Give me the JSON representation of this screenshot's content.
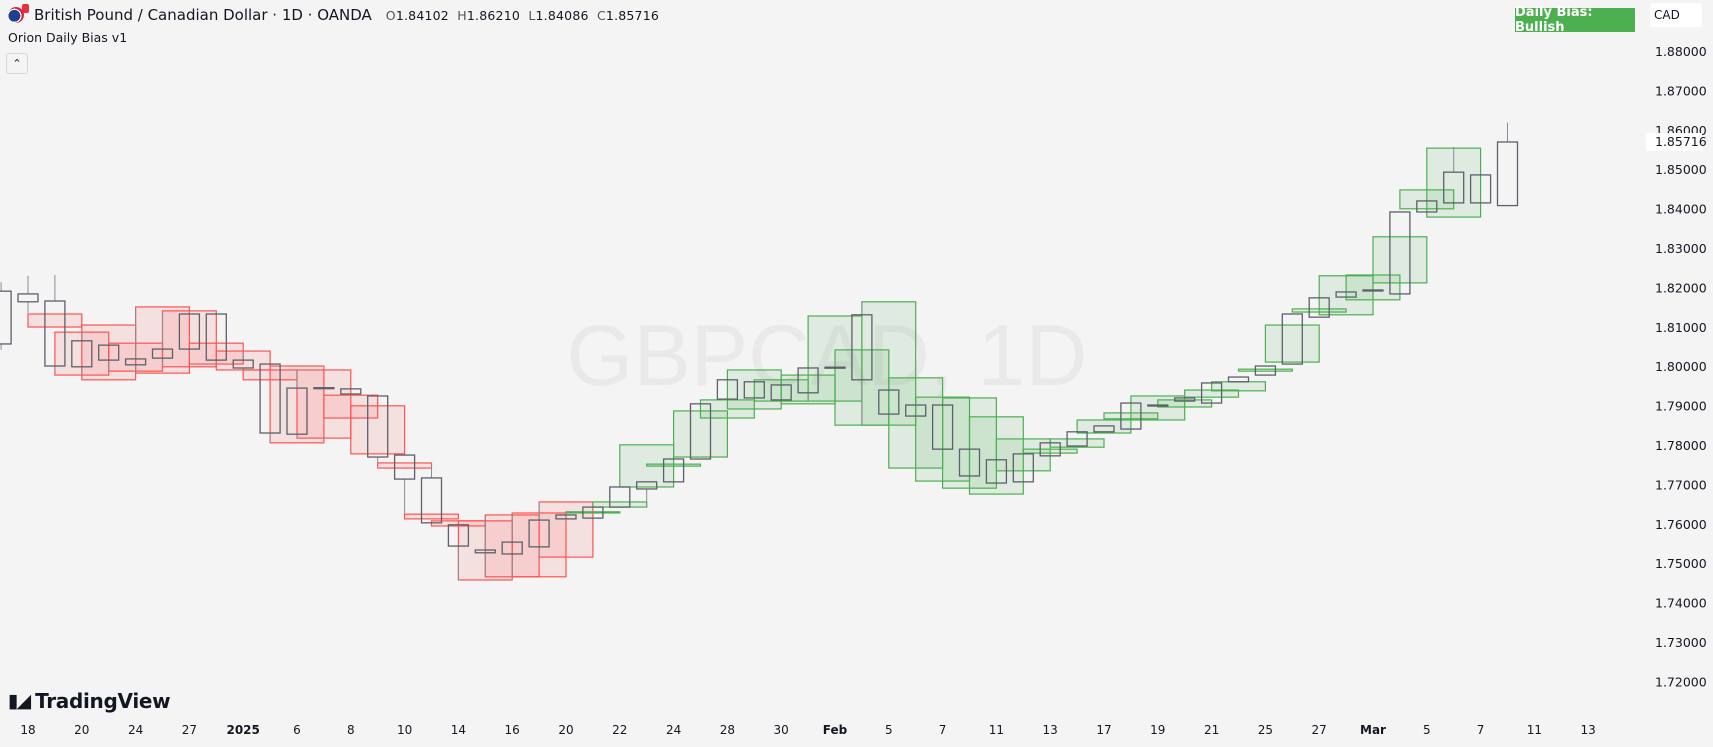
{
  "header": {
    "symbol_title": "British Pound / Canadian Dollar · 1D · OANDA",
    "ohlc": {
      "o_label": "O",
      "o": "1.84102",
      "h_label": "H",
      "h": "1.86210",
      "l_label": "L",
      "l": "1.84086",
      "c_label": "C",
      "c": "1.85716"
    },
    "indicator_name": "Orion Daily Bias v1",
    "collapse_icon": "chevron-up-icon"
  },
  "bias_badge": {
    "text": "Daily Bias: Bullish",
    "color": "#4caf50"
  },
  "currency_button": "CAD",
  "watermark": "GBPCAD, 1D",
  "logo": {
    "mark": "17",
    "text": "TradingView"
  },
  "colors": {
    "background": "#f4f4f4",
    "candle_outline": "#5d606b",
    "wick": "#8a8d96",
    "bearish_box": "#ff5252",
    "bullish_box": "#4caf50"
  },
  "chart_data": {
    "type": "candlestick",
    "price_axis": {
      "ticks": [
        "1.88000",
        "1.87000",
        "1.86000",
        "1.85000",
        "1.84000",
        "1.83000",
        "1.82000",
        "1.81000",
        "1.80000",
        "1.79000",
        "1.78000",
        "1.77000",
        "1.76000",
        "1.75000",
        "1.74000",
        "1.73000",
        "1.72000"
      ],
      "last_price": "1.85716"
    },
    "time_axis": [
      {
        "label": "18"
      },
      {
        "label": "20"
      },
      {
        "label": "24"
      },
      {
        "label": "27"
      },
      {
        "label": "2025",
        "bold": true
      },
      {
        "label": "6"
      },
      {
        "label": "8"
      },
      {
        "label": "10"
      },
      {
        "label": "14"
      },
      {
        "label": "16"
      },
      {
        "label": "20"
      },
      {
        "label": "22"
      },
      {
        "label": "24"
      },
      {
        "label": "28"
      },
      {
        "label": "30"
      },
      {
        "label": "Feb",
        "bold": true
      },
      {
        "label": "5"
      },
      {
        "label": "7"
      },
      {
        "label": "11"
      },
      {
        "label": "13"
      },
      {
        "label": "17"
      },
      {
        "label": "19"
      },
      {
        "label": "21"
      },
      {
        "label": "25"
      },
      {
        "label": "27"
      },
      {
        "label": "Mar",
        "bold": true
      },
      {
        "label": "5"
      },
      {
        "label": "7"
      },
      {
        "label": "11"
      },
      {
        "label": "13"
      }
    ],
    "candles": [
      [
        1.8193,
        1.8216,
        1.8044,
        1.8059
      ],
      [
        1.8186,
        1.8232,
        1.8138,
        1.8166
      ],
      [
        1.8168,
        1.8234,
        1.7993,
        1.8003
      ],
      [
        1.8001,
        1.8089,
        1.798,
        1.8067
      ],
      [
        1.8056,
        1.8061,
        1.799,
        1.8018
      ],
      [
        1.8021,
        1.8153,
        1.7985,
        1.8006
      ],
      [
        1.8023,
        1.8143,
        1.8001,
        1.8046
      ],
      [
        1.8046,
        1.8143,
        1.8039,
        1.8135
      ],
      [
        1.8135,
        1.8143,
        1.8003,
        1.8018
      ],
      [
        1.8018,
        1.8041,
        1.7993,
        1.7998
      ],
      [
        1.8008,
        1.8008,
        1.7808,
        1.7833
      ],
      [
        1.783,
        1.7993,
        1.782,
        1.7947
      ],
      [
        1.7948,
        1.7952,
        1.7942,
        1.7947
      ],
      [
        1.7945,
        1.795,
        1.7925,
        1.7932
      ],
      [
        1.7927,
        1.7927,
        1.7757,
        1.7772
      ],
      [
        1.7777,
        1.7777,
        1.7627,
        1.7716
      ],
      [
        1.7719,
        1.7757,
        1.7605,
        1.7605
      ],
      [
        1.76,
        1.761,
        1.746,
        1.7546
      ],
      [
        1.7529,
        1.7625,
        1.7468,
        1.7536
      ],
      [
        1.7526,
        1.763,
        1.7468,
        1.7556
      ],
      [
        1.7544,
        1.7658,
        1.7518,
        1.7612
      ],
      [
        1.7615,
        1.763,
        1.7612,
        1.7625
      ],
      [
        1.7617,
        1.7645,
        1.7617,
        1.7645
      ],
      [
        1.7645,
        1.7696,
        1.7645,
        1.7696
      ],
      [
        1.7691,
        1.7709,
        1.7645,
        1.7709
      ],
      [
        1.7709,
        1.7767,
        1.7709,
        1.7767
      ],
      [
        1.7767,
        1.7907,
        1.7767,
        1.7907
      ],
      [
        1.7919,
        1.7968,
        1.7919,
        1.7968
      ],
      [
        1.7963,
        1.7963,
        1.7922,
        1.7922
      ],
      [
        1.7917,
        1.7955,
        1.7917,
        1.7955
      ],
      [
        1.7935,
        1.7998,
        1.7914,
        1.7998
      ],
      [
        1.7998,
        1.8,
        1.7998,
        1.8
      ],
      [
        1.7968,
        1.8166,
        1.7853,
        1.8133
      ],
      [
        1.7942,
        1.7942,
        1.7881,
        1.7881
      ],
      [
        1.7904,
        1.7904,
        1.7876,
        1.7876
      ],
      [
        1.7904,
        1.7904,
        1.7792,
        1.7792
      ],
      [
        1.7792,
        1.7792,
        1.7724,
        1.7724
      ],
      [
        1.7765,
        1.7765,
        1.7706,
        1.7706
      ],
      [
        1.7709,
        1.778,
        1.7709,
        1.778
      ],
      [
        1.7775,
        1.7808,
        1.7775,
        1.7808
      ],
      [
        1.78,
        1.7836,
        1.78,
        1.7836
      ],
      [
        1.7836,
        1.7851,
        1.7836,
        1.7851
      ],
      [
        1.7843,
        1.7909,
        1.7843,
        1.7909
      ],
      [
        1.7902,
        1.7904,
        1.7902,
        1.7904
      ],
      [
        1.7914,
        1.7922,
        1.7914,
        1.7922
      ],
      [
        1.7909,
        1.796,
        1.7909,
        1.796
      ],
      [
        1.7963,
        1.7975,
        1.7963,
        1.7975
      ],
      [
        1.798,
        1.8003,
        1.798,
        1.8003
      ],
      [
        1.8008,
        1.8135,
        1.8008,
        1.8135
      ],
      [
        1.8127,
        1.8176,
        1.8127,
        1.8176
      ],
      [
        1.8178,
        1.8191,
        1.8178,
        1.8191
      ],
      [
        1.8194,
        1.8196,
        1.8194,
        1.8196
      ],
      [
        1.8186,
        1.8394,
        1.8186,
        1.8394
      ],
      [
        1.8394,
        1.8422,
        1.8394,
        1.8422
      ],
      [
        1.8417,
        1.8559,
        1.8417,
        1.8495
      ],
      [
        1.8488,
        1.8488,
        1.8417,
        1.8417
      ],
      [
        1.84102,
        1.8621,
        1.84086,
        1.85716
      ]
    ],
    "candle_fields": [
      "open",
      "high",
      "low",
      "close"
    ],
    "bias_boxes": [
      {
        "bar": 1,
        "top": 1.8135,
        "bottom": 1.8102,
        "bias": "bearish"
      },
      {
        "bar": 2,
        "top": 1.8089,
        "bottom": 1.798,
        "bias": "bearish"
      },
      {
        "bar": 3,
        "top": 1.8107,
        "bottom": 1.7968,
        "bias": "bearish"
      },
      {
        "bar": 4,
        "top": 1.8061,
        "bottom": 1.799,
        "bias": "bearish"
      },
      {
        "bar": 5,
        "top": 1.8153,
        "bottom": 1.7985,
        "bias": "bearish"
      },
      {
        "bar": 6,
        "top": 1.8143,
        "bottom": 1.8001,
        "bias": "bearish"
      },
      {
        "bar": 7,
        "top": 1.8061,
        "bottom": 1.8008,
        "bias": "bearish"
      },
      {
        "bar": 8,
        "top": 1.8041,
        "bottom": 1.7993,
        "bias": "bearish"
      },
      {
        "bar": 9,
        "top": 1.7993,
        "bottom": 1.7968,
        "bias": "bearish"
      },
      {
        "bar": 10,
        "top": 1.8003,
        "bottom": 1.7808,
        "bias": "bearish"
      },
      {
        "bar": 11,
        "top": 1.7993,
        "bottom": 1.782,
        "bias": "bearish"
      },
      {
        "bar": 12,
        "top": 1.7929,
        "bottom": 1.7871,
        "bias": "bearish"
      },
      {
        "bar": 13,
        "top": 1.7902,
        "bottom": 1.778,
        "bias": "bearish"
      },
      {
        "bar": 14,
        "top": 1.7757,
        "bottom": 1.7744,
        "bias": "bearish"
      },
      {
        "bar": 15,
        "top": 1.7627,
        "bottom": 1.7615,
        "bias": "bearish"
      },
      {
        "bar": 16,
        "top": 1.761,
        "bottom": 1.7597,
        "bias": "bearish"
      },
      {
        "bar": 17,
        "top": 1.761,
        "bottom": 1.746,
        "bias": "bearish"
      },
      {
        "bar": 18,
        "top": 1.7625,
        "bottom": 1.7468,
        "bias": "bearish"
      },
      {
        "bar": 19,
        "top": 1.763,
        "bottom": 1.7468,
        "bias": "bearish"
      },
      {
        "bar": 20,
        "top": 1.7658,
        "bottom": 1.7518,
        "bias": "bearish"
      },
      {
        "bar": 21,
        "top": 1.7633,
        "bottom": 1.763,
        "bias": "bullish"
      },
      {
        "bar": 22,
        "top": 1.7658,
        "bottom": 1.7645,
        "bias": "bullish"
      },
      {
        "bar": 23,
        "top": 1.7803,
        "bottom": 1.7696,
        "bias": "bullish"
      },
      {
        "bar": 24,
        "top": 1.7754,
        "bottom": 1.7749,
        "bias": "bullish"
      },
      {
        "bar": 25,
        "top": 1.7889,
        "bottom": 1.7772,
        "bias": "bullish"
      },
      {
        "bar": 26,
        "top": 1.7917,
        "bottom": 1.7871,
        "bias": "bullish"
      },
      {
        "bar": 27,
        "top": 1.7993,
        "bottom": 1.7894,
        "bias": "bullish"
      },
      {
        "bar": 28,
        "top": 1.7968,
        "bottom": 1.7914,
        "bias": "bullish"
      },
      {
        "bar": 29,
        "top": 1.798,
        "bottom": 1.7907,
        "bias": "bullish"
      },
      {
        "bar": 30,
        "top": 1.813,
        "bottom": 1.7914,
        "bias": "bullish"
      },
      {
        "bar": 31,
        "top": 1.8044,
        "bottom": 1.7853,
        "bias": "bullish"
      },
      {
        "bar": 32,
        "top": 1.8166,
        "bottom": 1.7853,
        "bias": "bullish"
      },
      {
        "bar": 33,
        "top": 1.7973,
        "bottom": 1.7744,
        "bias": "bullish"
      },
      {
        "bar": 34,
        "top": 1.7924,
        "bottom": 1.7711,
        "bias": "bullish"
      },
      {
        "bar": 35,
        "top": 1.7922,
        "bottom": 1.7693,
        "bias": "bullish"
      },
      {
        "bar": 36,
        "top": 1.7874,
        "bottom": 1.7678,
        "bias": "bullish"
      },
      {
        "bar": 37,
        "top": 1.7818,
        "bottom": 1.7737,
        "bias": "bullish"
      },
      {
        "bar": 38,
        "top": 1.7792,
        "bottom": 1.7782,
        "bias": "bullish"
      },
      {
        "bar": 39,
        "top": 1.7818,
        "bottom": 1.7797,
        "bias": "bullish"
      },
      {
        "bar": 40,
        "top": 1.7866,
        "bottom": 1.7833,
        "bias": "bullish"
      },
      {
        "bar": 41,
        "top": 1.7884,
        "bottom": 1.7869,
        "bias": "bullish"
      },
      {
        "bar": 42,
        "top": 1.7927,
        "bottom": 1.7866,
        "bias": "bullish"
      },
      {
        "bar": 43,
        "top": 1.7917,
        "bottom": 1.7899,
        "bias": "bullish"
      },
      {
        "bar": 44,
        "top": 1.7942,
        "bottom": 1.7924,
        "bias": "bullish"
      },
      {
        "bar": 45,
        "top": 1.7963,
        "bottom": 1.794,
        "bias": "bullish"
      },
      {
        "bar": 46,
        "top": 1.7995,
        "bottom": 1.799,
        "bias": "bullish"
      },
      {
        "bar": 47,
        "top": 1.8107,
        "bottom": 1.8013,
        "bias": "bullish"
      },
      {
        "bar": 48,
        "top": 1.8148,
        "bottom": 1.814,
        "bias": "bullish"
      },
      {
        "bar": 49,
        "top": 1.8232,
        "bottom": 1.8133,
        "bias": "bullish"
      },
      {
        "bar": 50,
        "top": 1.8234,
        "bottom": 1.8171,
        "bias": "bullish"
      },
      {
        "bar": 51,
        "top": 1.8331,
        "bottom": 1.8214,
        "bias": "bullish"
      },
      {
        "bar": 52,
        "top": 1.845,
        "bottom": 1.8402,
        "bias": "bullish"
      },
      {
        "bar": 53,
        "top": 1.8556,
        "bottom": 1.8381,
        "bias": "bullish"
      }
    ]
  }
}
